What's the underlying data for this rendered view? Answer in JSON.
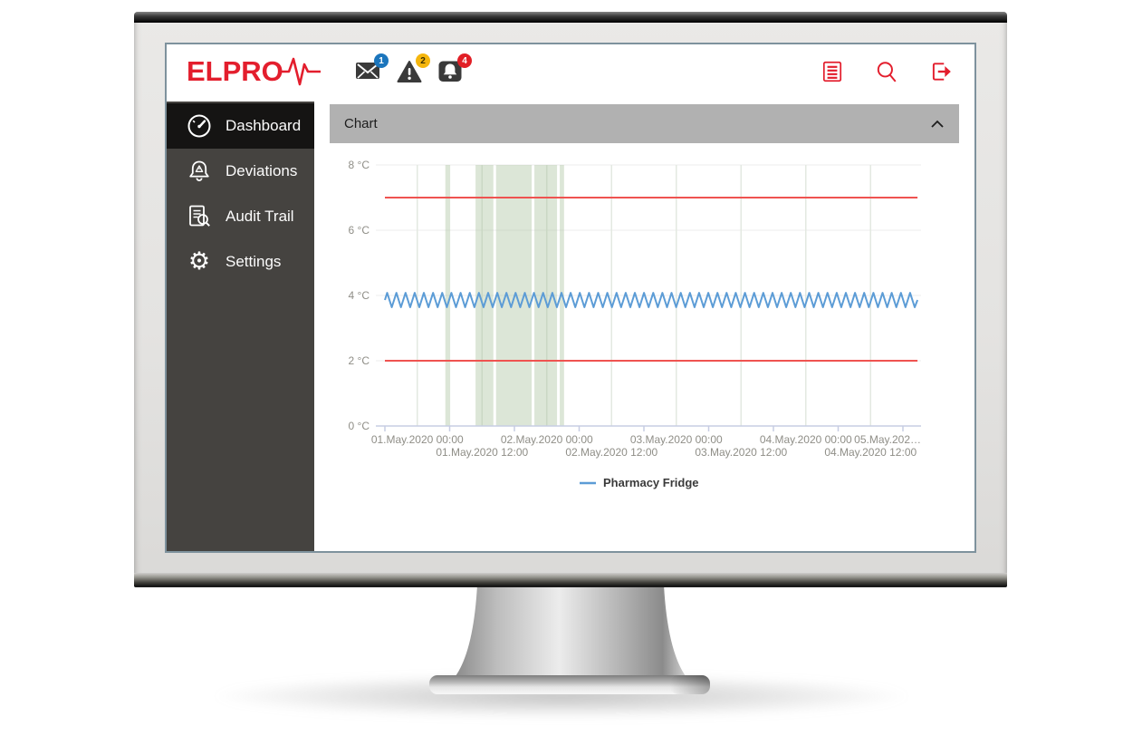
{
  "app": {
    "topbar": {
      "logo_text": "ELPRO",
      "accent_color": "#e31e2d",
      "notifications": [
        {
          "name": "messages",
          "icon": "envelope-icon",
          "count": "1",
          "badge_color": "#1b75bc"
        },
        {
          "name": "warnings",
          "icon": "warning-triangle-icon",
          "count": "2",
          "badge_color": "#f5b60d"
        },
        {
          "name": "alarms",
          "icon": "bell-icon",
          "count": "4",
          "badge_color": "#e11f26"
        }
      ],
      "actions": [
        {
          "name": "reports",
          "icon": "list-icon"
        },
        {
          "name": "search",
          "icon": "search-icon"
        },
        {
          "name": "logout",
          "icon": "logout-icon"
        }
      ]
    },
    "sidebar": {
      "items": [
        {
          "label": "Dashboard",
          "icon": "gauge-icon",
          "active": true
        },
        {
          "label": "Deviations",
          "icon": "alarm-bell-icon",
          "active": false
        },
        {
          "label": "Audit Trail",
          "icon": "audit-document-icon",
          "active": false
        },
        {
          "label": "Settings",
          "icon": "gear-icon",
          "active": false
        }
      ]
    },
    "panel": {
      "title": "Chart"
    }
  },
  "chart_data": {
    "type": "line",
    "y_axis": {
      "min": 0,
      "max": 8,
      "unit": "°C",
      "ticks": [
        "0 °C",
        "2 °C",
        "4 °C",
        "6 °C",
        "8 °C"
      ]
    },
    "x_axis": {
      "tick_every_hours": 12,
      "tick_hours": [
        0,
        12,
        24,
        36,
        48,
        60,
        72,
        84,
        96
      ],
      "gridline_hours": [
        6,
        18,
        30,
        42,
        54,
        66,
        78,
        90
      ],
      "labels_row1": [
        {
          "text": "01.May.2020 00:00",
          "hour": 6
        },
        {
          "text": "02.May.2020 00:00",
          "hour": 30
        },
        {
          "text": "03.May.2020 00:00",
          "hour": 54
        },
        {
          "text": "04.May.2020 00:00",
          "hour": 78
        },
        {
          "text": "05.May.202…",
          "hour": 100,
          "truncated": true
        }
      ],
      "labels_row2": [
        {
          "text": "01.May.2020 12:00",
          "hour": 18
        },
        {
          "text": "02.May.2020 12:00",
          "hour": 42
        },
        {
          "text": "03.May.2020 12:00",
          "hour": 66
        },
        {
          "text": "04.May.2020 12:00",
          "hour": 90
        }
      ]
    },
    "limit_lines": [
      {
        "value": 7,
        "color": "#ef5350"
      },
      {
        "value": 2,
        "color": "#ef5350"
      }
    ],
    "event_bands": {
      "color": "rgba(164,190,150,0.38)",
      "ranges_hours": [
        [
          11.2,
          12.1
        ],
        [
          16.8,
          20.1
        ],
        [
          20.6,
          27.2
        ],
        [
          27.7,
          31.9
        ],
        [
          32.4,
          33.2
        ]
      ]
    },
    "series": [
      {
        "name": "Pharmacy Fridge",
        "color": "#5c9cd6",
        "waveform": "triangle",
        "baseline_c": 3.86,
        "amplitude_c": 0.22,
        "period_hours": 1.7,
        "start_hour": 0,
        "end_hour": 98.7
      }
    ],
    "legend": {
      "position": "bottom-center",
      "entries": [
        {
          "label": "Pharmacy Fridge",
          "color": "#5c9cd6"
        }
      ]
    }
  }
}
